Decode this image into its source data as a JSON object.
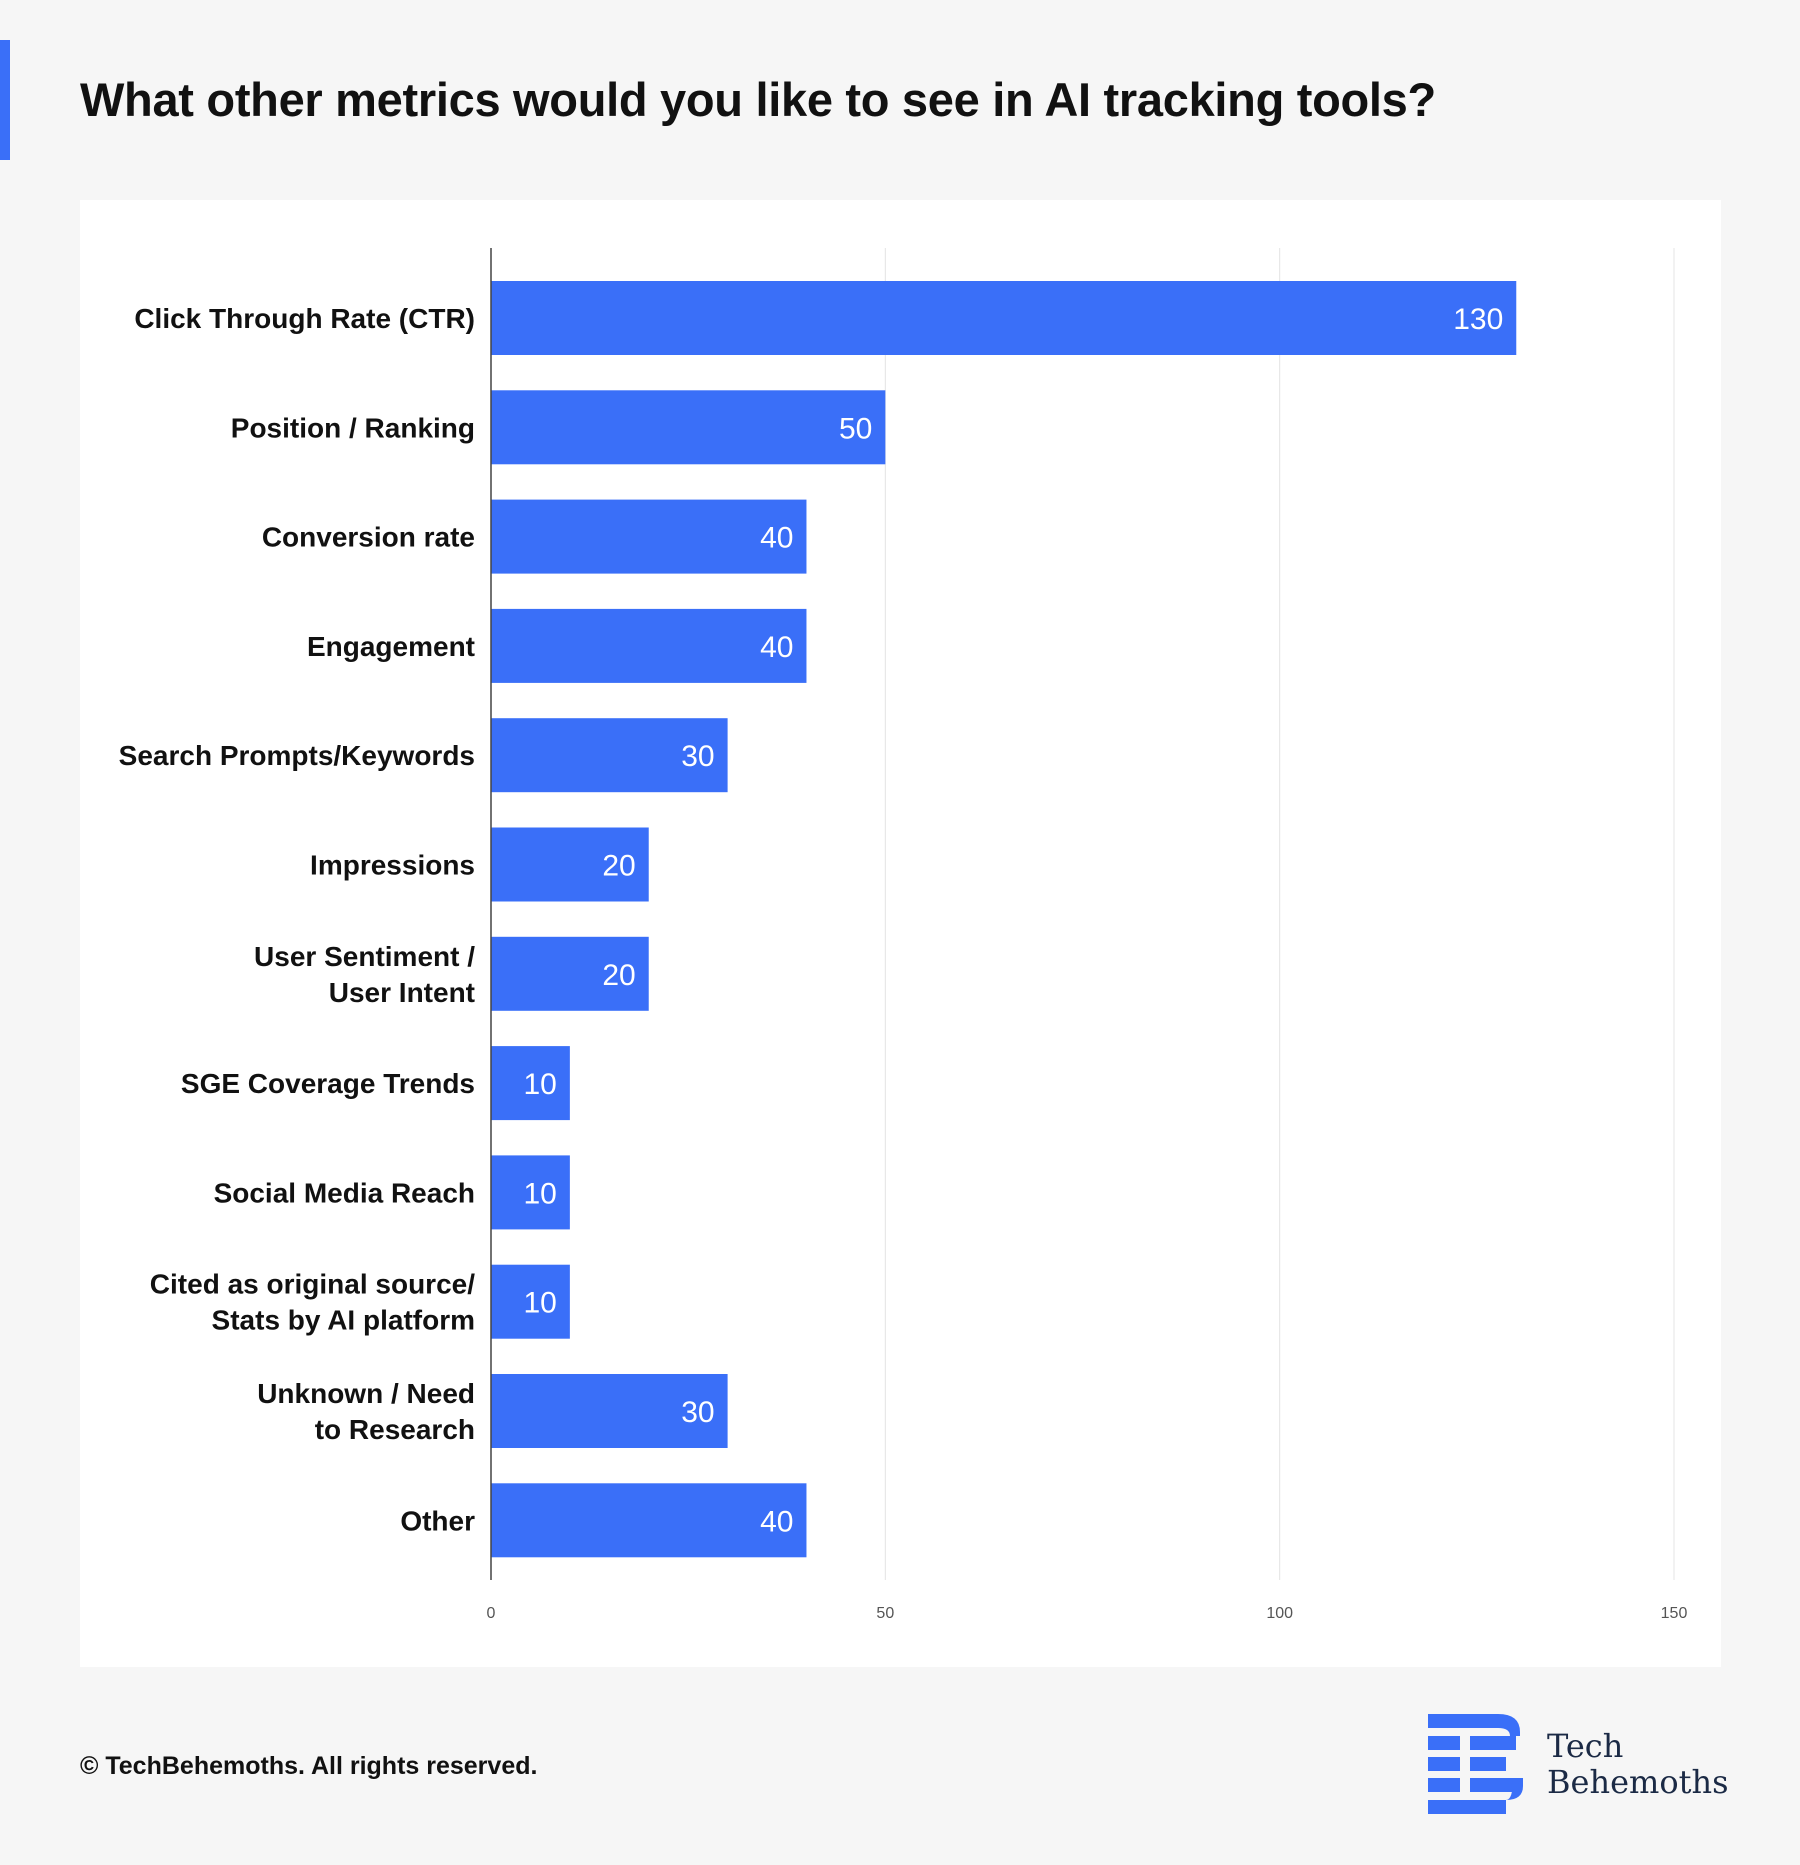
{
  "page": {
    "title": "What other metrics would you like to see in AI tracking tools?",
    "copyright": "© TechBehemoths. All rights reserved.",
    "brand": {
      "line1": "Tech",
      "line2": "Behemoths"
    }
  },
  "colors": {
    "accent": "#3a6ff8",
    "bar": "#3a6ff8",
    "bar_label": "#ffffff",
    "category_label": "#111111",
    "tick_label": "#555555",
    "grid": "#e4e4e4",
    "axis": "#444444",
    "brand_text": "#1b2a45"
  },
  "chart_data": {
    "type": "bar",
    "orientation": "horizontal",
    "title": "",
    "xlabel": "",
    "ylabel": "",
    "categories": [
      [
        "Click Through Rate (CTR)"
      ],
      [
        "Position / Ranking"
      ],
      [
        "Conversion rate"
      ],
      [
        "Engagement"
      ],
      [
        "Search Prompts/Keywords"
      ],
      [
        "Impressions"
      ],
      [
        "User Sentiment /",
        "User Intent"
      ],
      [
        "SGE Coverage Trends"
      ],
      [
        "Social Media Reach"
      ],
      [
        "Cited as original source/",
        "Stats by AI platform"
      ],
      [
        "Unknown / Need",
        "to Research"
      ],
      [
        "Other"
      ]
    ],
    "values": [
      130,
      50,
      40,
      40,
      30,
      20,
      20,
      10,
      10,
      10,
      30,
      40
    ],
    "xlim": [
      0,
      150
    ],
    "xticks": [
      0,
      50,
      100,
      150
    ],
    "grid": true,
    "data_labels": true,
    "legend": "none"
  }
}
